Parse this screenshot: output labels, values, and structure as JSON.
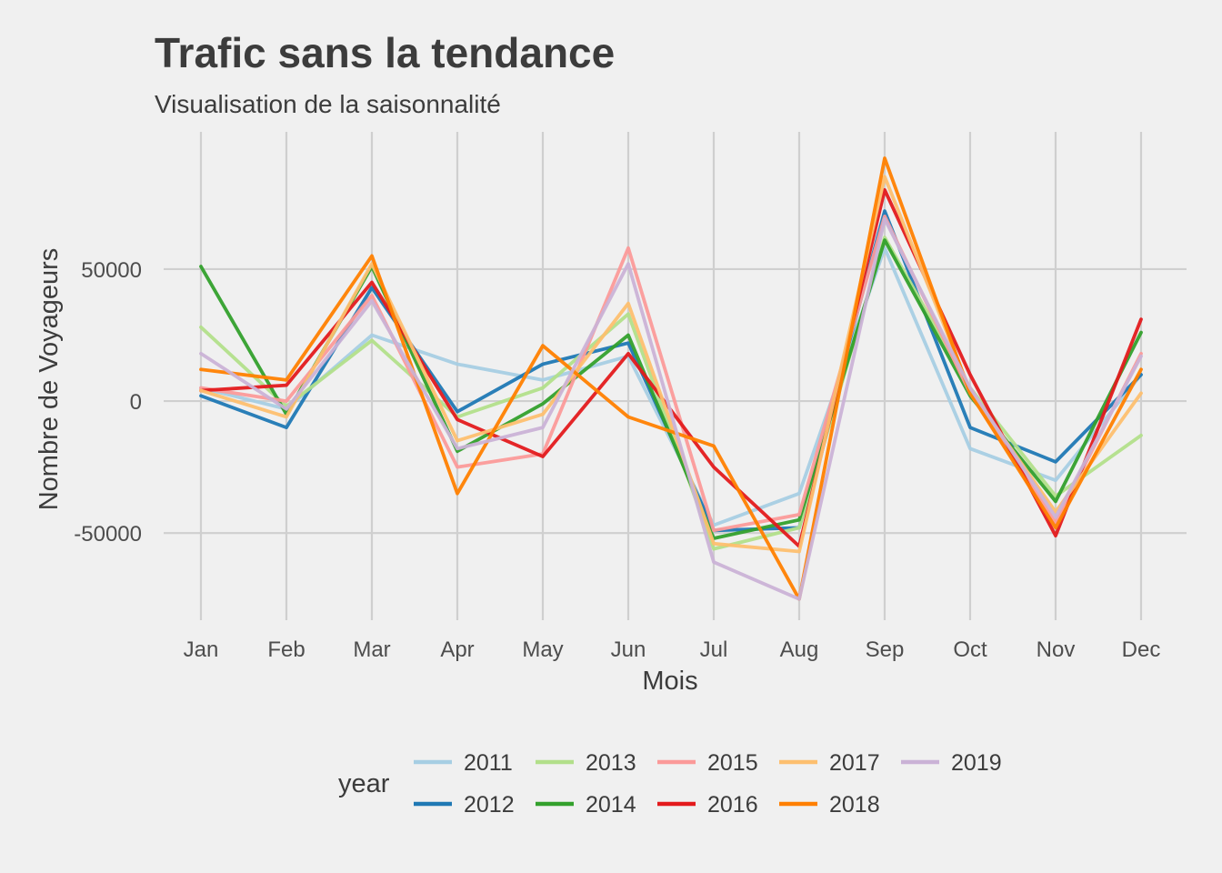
{
  "chart_data": {
    "type": "line",
    "title": "Trafic sans la tendance",
    "subtitle": "Visualisation de la saisonnalité",
    "xlabel": "Mois",
    "ylabel": "Nombre de Voyageurs",
    "categories": [
      "Jan",
      "Feb",
      "Mar",
      "Apr",
      "May",
      "Jun",
      "Jul",
      "Aug",
      "Sep",
      "Oct",
      "Nov",
      "Dec"
    ],
    "ylim": [
      -83000,
      102000
    ],
    "yticks": [
      -50000,
      0,
      50000
    ],
    "ytick_labels": [
      "-50000",
      "0",
      "50000"
    ],
    "grid": true,
    "legend": {
      "title": "year",
      "position": "bottom"
    },
    "series": [
      {
        "name": "2011",
        "color": "#a6cee3",
        "values": [
          5000,
          -3000,
          25000,
          14000,
          8000,
          17000,
          -47000,
          -35000,
          58000,
          -18000,
          -30000,
          10000
        ]
      },
      {
        "name": "2012",
        "color": "#1f78b4",
        "values": [
          2000,
          -10000,
          43000,
          -4000,
          14000,
          22000,
          -49000,
          -48000,
          72000,
          -10000,
          -23000,
          10000
        ]
      },
      {
        "name": "2013",
        "color": "#b2df8a",
        "values": [
          28000,
          -2000,
          23000,
          -6000,
          5000,
          33000,
          -56000,
          -48000,
          62000,
          5000,
          -36000,
          -13000
        ]
      },
      {
        "name": "2014",
        "color": "#33a02c",
        "values": [
          51000,
          -5000,
          51000,
          -19000,
          -1000,
          25000,
          -52000,
          -45000,
          61000,
          2000,
          -38000,
          26000
        ]
      },
      {
        "name": "2015",
        "color": "#fb9a99",
        "values": [
          5000,
          0,
          40000,
          -25000,
          -20000,
          58000,
          -49000,
          -43000,
          70000,
          3000,
          -46000,
          18000
        ]
      },
      {
        "name": "2016",
        "color": "#e31a1c",
        "values": [
          4000,
          6000,
          45000,
          -7000,
          -21000,
          18000,
          -25000,
          -55000,
          80000,
          10000,
          -51000,
          31000
        ]
      },
      {
        "name": "2017",
        "color": "#fdbf6f",
        "values": [
          4000,
          -6000,
          52000,
          -15000,
          -5000,
          37000,
          -54000,
          -57000,
          85000,
          4000,
          -42000,
          3000
        ]
      },
      {
        "name": "2018",
        "color": "#ff7f00",
        "values": [
          12000,
          8000,
          55000,
          -35000,
          21000,
          -6000,
          -17000,
          -75000,
          92000,
          3000,
          -48000,
          12000
        ]
      },
      {
        "name": "2019",
        "color": "#cab2d6",
        "values": [
          18000,
          -3000,
          38000,
          -18000,
          -10000,
          52000,
          -61000,
          -75000,
          69000,
          5000,
          -44000,
          17000
        ]
      }
    ]
  }
}
